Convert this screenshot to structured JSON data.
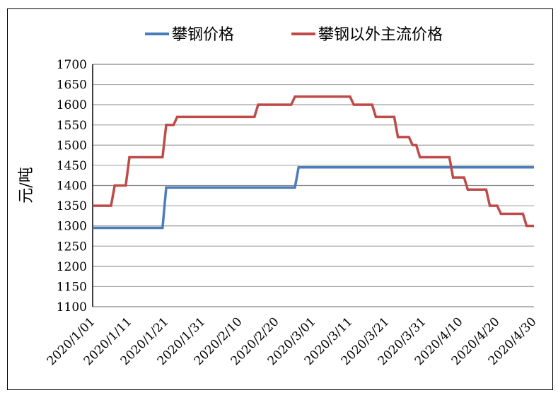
{
  "chart_data": {
    "type": "line",
    "title": "",
    "ylabel": "元/吨",
    "xlabel": "",
    "ylim": [
      1100,
      1700
    ],
    "yticks": [
      1100,
      1150,
      1200,
      1250,
      1300,
      1350,
      1400,
      1450,
      1500,
      1550,
      1600,
      1650,
      1700
    ],
    "xlim": [
      "2020/1/01",
      "2020/4/30"
    ],
    "xticks": [
      "2020/1/01",
      "2020/1/11",
      "2020/1/21",
      "2020/1/31",
      "2020/2/10",
      "2020/2/20",
      "2020/3/01",
      "2020/3/11",
      "2020/3/21",
      "2020/3/31",
      "2020/4/10",
      "2020/4/20",
      "2020/4/30"
    ],
    "grid": true,
    "legend": "top",
    "series": [
      {
        "name": "攀钢价格",
        "color": "#4a7ebb",
        "points": [
          [
            "2020/1/01",
            1295
          ],
          [
            "2020/1/20",
            1295
          ],
          [
            "2020/1/21",
            1395
          ],
          [
            "2020/2/25",
            1395
          ],
          [
            "2020/2/26",
            1445
          ],
          [
            "2020/4/30",
            1445
          ]
        ]
      },
      {
        "name": "攀钢以外主流价格",
        "color": "#be4b48",
        "points": [
          [
            "2020/1/01",
            1350
          ],
          [
            "2020/1/06",
            1350
          ],
          [
            "2020/1/07",
            1400
          ],
          [
            "2020/1/10",
            1400
          ],
          [
            "2020/1/11",
            1470
          ],
          [
            "2020/1/20",
            1470
          ],
          [
            "2020/1/21",
            1550
          ],
          [
            "2020/1/23",
            1550
          ],
          [
            "2020/1/24",
            1570
          ],
          [
            "2020/2/14",
            1570
          ],
          [
            "2020/2/15",
            1600
          ],
          [
            "2020/2/24",
            1600
          ],
          [
            "2020/2/25",
            1620
          ],
          [
            "2020/3/11",
            1620
          ],
          [
            "2020/3/12",
            1600
          ],
          [
            "2020/3/17",
            1600
          ],
          [
            "2020/3/18",
            1570
          ],
          [
            "2020/3/23",
            1570
          ],
          [
            "2020/3/24",
            1520
          ],
          [
            "2020/3/27",
            1520
          ],
          [
            "2020/3/28",
            1500
          ],
          [
            "2020/3/29",
            1500
          ],
          [
            "2020/3/30",
            1470
          ],
          [
            "2020/4/07",
            1470
          ],
          [
            "2020/4/08",
            1420
          ],
          [
            "2020/4/11",
            1420
          ],
          [
            "2020/4/12",
            1390
          ],
          [
            "2020/4/17",
            1390
          ],
          [
            "2020/4/18",
            1350
          ],
          [
            "2020/4/20",
            1350
          ],
          [
            "2020/4/21",
            1330
          ],
          [
            "2020/4/27",
            1330
          ],
          [
            "2020/4/28",
            1300
          ],
          [
            "2020/4/30",
            1300
          ]
        ]
      }
    ]
  }
}
